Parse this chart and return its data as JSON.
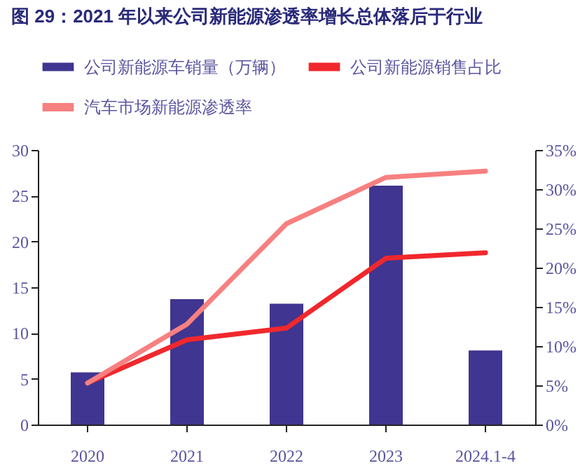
{
  "chart_data": {
    "type": "bar",
    "title": "图 29：2021 年以来公司新能源渗透率增长总体落后于行业",
    "categories": [
      "2020",
      "2021",
      "2022",
      "2023",
      "2024.1-4"
    ],
    "series": [
      {
        "name": "公司新能源车销量（万辆）",
        "color": "#403590",
        "values": [
          5.7,
          13.7,
          13.2,
          26.1,
          8.1
        ]
      },
      {
        "name": "公司新能源销售占比",
        "type": "line",
        "axis": "y2",
        "color": "#f0282d",
        "values": [
          5.3,
          10.8,
          12.3,
          21.2,
          21.9
        ]
      },
      {
        "name": "汽车市场新能源渗透率",
        "type": "line",
        "axis": "y2",
        "color": "#f78080",
        "values": [
          5.3,
          12.8,
          25.6,
          31.5,
          32.3
        ]
      }
    ],
    "ylim": [
      0,
      30
    ],
    "yticks": [
      0,
      5,
      10,
      15,
      20,
      25,
      30
    ],
    "y2lim": [
      0,
      35
    ],
    "y2ticks": [
      {
        "value": 0,
        "label": "0%"
      },
      {
        "value": 5,
        "label": "5%"
      },
      {
        "value": 10,
        "label": "10%"
      },
      {
        "value": 15,
        "label": "15%"
      },
      {
        "value": 20,
        "label": "20%"
      },
      {
        "value": 25,
        "label": "25%"
      },
      {
        "value": 30,
        "label": "30%"
      },
      {
        "value": 35,
        "label": "35%"
      }
    ],
    "legend": "top",
    "grid": false
  }
}
